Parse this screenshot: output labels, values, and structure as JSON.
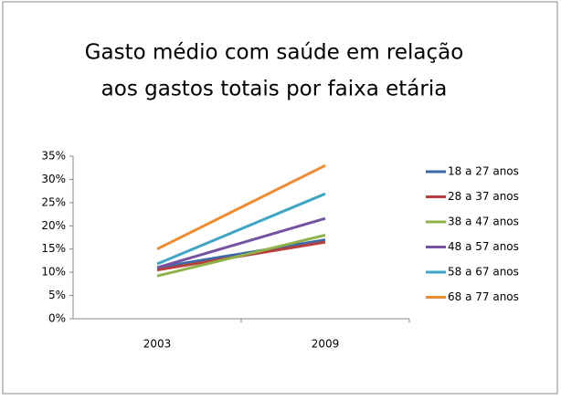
{
  "chart_data": {
    "type": "line",
    "title": [
      "Gasto médio com saúde em relação",
      "aos gastos totais por faixa etária"
    ],
    "categories": [
      "2003",
      "2009"
    ],
    "series": [
      {
        "name": "18 a 27 anos",
        "color": "#3b6aa8",
        "values": [
          11,
          17
        ]
      },
      {
        "name": "28 a 37 anos",
        "color": "#b8403c",
        "values": [
          10.5,
          16.5
        ]
      },
      {
        "name": "38 a 47 anos",
        "color": "#8fb249",
        "values": [
          9.2,
          18
        ]
      },
      {
        "name": "48 a 57 anos",
        "color": "#7553a0",
        "values": [
          11,
          21.6
        ]
      },
      {
        "name": "58 a 67 anos",
        "color": "#3ea6c4",
        "values": [
          11.8,
          26.9
        ]
      },
      {
        "name": "68 a 77 anos",
        "color": "#ee8b33",
        "values": [
          15,
          33
        ]
      }
    ],
    "ylim": [
      0,
      35
    ],
    "yticks": [
      {
        "value": 0,
        "label": "0%"
      },
      {
        "value": 5,
        "label": "5%"
      },
      {
        "value": 10,
        "label": "10%"
      },
      {
        "value": 15,
        "label": "15%"
      },
      {
        "value": 20,
        "label": "20%"
      },
      {
        "value": 25,
        "label": "25%"
      },
      {
        "value": 30,
        "label": "30%"
      },
      {
        "value": 35,
        "label": "35%"
      }
    ],
    "legend": "right"
  }
}
